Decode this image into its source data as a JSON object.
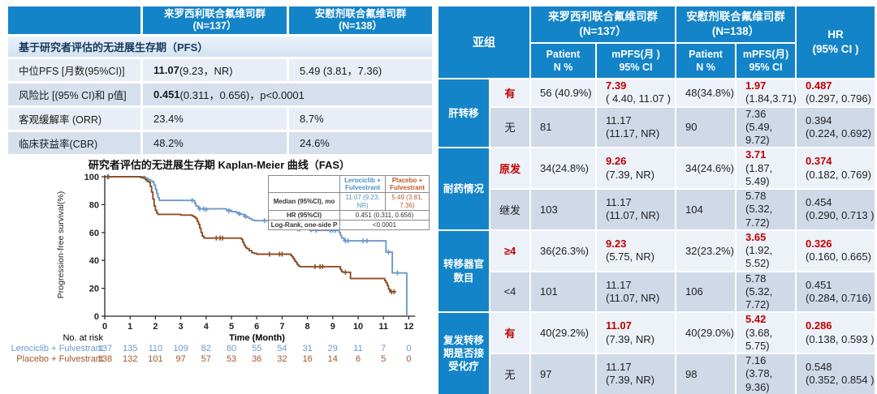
{
  "accent_color": "#1484c8",
  "highlight_color": "#c00000",
  "summary_table": {
    "arm1_header": "来罗西利联合氟维司群\n(N=137）",
    "arm2_header": "安慰剂联合氟维司群\n(N=138）",
    "section_header": "基于研究者评估的无进展生存期（PFS）",
    "median": {
      "label": "中位PFS [月数(95%CI)]",
      "v1_bold": "11.07",
      "v1_rest": " (9.23，NR)",
      "v2": "5.49 (3.81，7.36)"
    },
    "hr": {
      "label": "风险比 [(95% CI)和 p值]",
      "v_bold": "0.451",
      "v_rest": " (0.311，0.656)，p<0.0001"
    },
    "orr": {
      "label": "客观缓解率 (ORR)",
      "v1": "23.4%",
      "v2": "8.7%"
    },
    "cbr": {
      "label": "临床获益率(CBR)",
      "v1": "48.2%",
      "v2": "24.6%"
    }
  },
  "km": {
    "title": "研究者评估的无进展生存期 Kaplan-Meier 曲线（FAS）",
    "ylabel": "Progression-free survival(%)",
    "xlabel": "Time (Month)",
    "inset": {
      "arm1": "Lerociclib +\nFulvestrant",
      "arm2": "Placebo +\nFulvestrant",
      "median_label": "Median (95%CI), mo",
      "median_arm1": "11.07 (9.23, NR)",
      "median_arm2": "5.49 (3.81, 7.36)",
      "hr_label": "HR (95%CI)",
      "hr_value": "0.451  (0.311, 0.656)",
      "logrank_label": "Log-Rank, one-side P",
      "logrank_value": "<0.0001"
    }
  },
  "chart_data": {
    "type": "line",
    "title": "研究者评估的无进展生存期 Kaplan-Meier 曲线（FAS）",
    "xlabel": "Time (Month)",
    "ylabel": "Progression-free survival(%)",
    "xlim": [
      0,
      12
    ],
    "ylim": [
      0,
      100
    ],
    "xticks": [
      0,
      1,
      2,
      3,
      4,
      5,
      6,
      7,
      8,
      9,
      10,
      11,
      12
    ],
    "yticks": [
      0,
      20,
      40,
      60,
      80,
      100
    ],
    "grid": false,
    "legend_position": "inset-table-top-right",
    "series": [
      {
        "name": "Lerociclib + Fulvestrant",
        "color": "#6b9ac9",
        "steps": [
          [
            0,
            100
          ],
          [
            1.55,
            100
          ],
          [
            1.6,
            99
          ],
          [
            1.7,
            98
          ],
          [
            1.8,
            97
          ],
          [
            1.9,
            96
          ],
          [
            1.95,
            94
          ],
          [
            2.0,
            91
          ],
          [
            2.05,
            88
          ],
          [
            2.1,
            85
          ],
          [
            2.15,
            83
          ],
          [
            3.5,
            83
          ],
          [
            3.55,
            81
          ],
          [
            3.6,
            79
          ],
          [
            3.7,
            77
          ],
          [
            4.6,
            77
          ],
          [
            4.8,
            76
          ],
          [
            5.0,
            75
          ],
          [
            5.2,
            74
          ],
          [
            5.35,
            73
          ],
          [
            5.5,
            72
          ],
          [
            5.6,
            71
          ],
          [
            5.7,
            70
          ],
          [
            5.8,
            69
          ],
          [
            5.9,
            68.5
          ],
          [
            7.3,
            68.5
          ],
          [
            7.35,
            67
          ],
          [
            7.4,
            66
          ],
          [
            7.45,
            65
          ],
          [
            7.5,
            64
          ],
          [
            7.55,
            63
          ],
          [
            7.6,
            62.5
          ],
          [
            8.05,
            62.5
          ],
          [
            8.1,
            61.5
          ],
          [
            9.2,
            61.5
          ],
          [
            9.25,
            60
          ],
          [
            9.3,
            58
          ],
          [
            9.35,
            56
          ],
          [
            9.45,
            54
          ],
          [
            11.05,
            54
          ],
          [
            11.1,
            46
          ],
          [
            11.3,
            46
          ],
          [
            11.35,
            31
          ],
          [
            11.9,
            31
          ],
          [
            11.92,
            0
          ]
        ],
        "censors": [
          [
            0.15,
            100
          ],
          [
            3.45,
            83
          ],
          [
            3.75,
            77
          ],
          [
            3.9,
            77
          ],
          [
            4.0,
            76.5
          ],
          [
            4.9,
            75.5
          ],
          [
            5.3,
            73.5
          ],
          [
            5.55,
            71.5
          ],
          [
            6.3,
            68.5
          ],
          [
            6.5,
            68.5
          ],
          [
            6.9,
            68.5
          ],
          [
            7.5,
            63.5
          ],
          [
            7.62,
            62.5
          ],
          [
            7.7,
            62.5
          ],
          [
            8.15,
            62
          ],
          [
            8.35,
            61.5
          ],
          [
            8.9,
            61.5
          ],
          [
            9.0,
            61.5
          ],
          [
            9.1,
            61.5
          ],
          [
            9.5,
            54
          ],
          [
            9.6,
            54
          ],
          [
            10.2,
            54
          ],
          [
            10.35,
            54
          ],
          [
            11.2,
            46
          ],
          [
            11.55,
            31
          ]
        ]
      },
      {
        "name": "Placebo + Fulvestrant",
        "color": "#8e4e22",
        "steps": [
          [
            0,
            100
          ],
          [
            1.3,
            100
          ],
          [
            1.4,
            99.5
          ],
          [
            1.5,
            99
          ],
          [
            1.6,
            98
          ],
          [
            1.65,
            97
          ],
          [
            1.7,
            96.5
          ],
          [
            1.75,
            96
          ],
          [
            1.8,
            93
          ],
          [
            1.85,
            89
          ],
          [
            1.9,
            84
          ],
          [
            1.95,
            79
          ],
          [
            2.0,
            76
          ],
          [
            2.05,
            74
          ],
          [
            2.1,
            73
          ],
          [
            3.0,
            72.5
          ],
          [
            3.4,
            72.5
          ],
          [
            3.45,
            72
          ],
          [
            3.5,
            71.5
          ],
          [
            3.55,
            71
          ],
          [
            3.6,
            70
          ],
          [
            3.65,
            68
          ],
          [
            3.7,
            66
          ],
          [
            3.75,
            63
          ],
          [
            3.8,
            60
          ],
          [
            3.85,
            57.5
          ],
          [
            3.9,
            56.5
          ],
          [
            3.95,
            56
          ],
          [
            5.35,
            56
          ],
          [
            5.4,
            55
          ],
          [
            5.45,
            53
          ],
          [
            5.5,
            51
          ],
          [
            5.55,
            49.5
          ],
          [
            5.6,
            48.5
          ],
          [
            5.7,
            47
          ],
          [
            5.8,
            45.5
          ],
          [
            5.9,
            45
          ],
          [
            6.0,
            44.5
          ],
          [
            7.3,
            44.5
          ],
          [
            7.35,
            43.5
          ],
          [
            7.4,
            42.5
          ],
          [
            7.45,
            41
          ],
          [
            7.5,
            39.5
          ],
          [
            7.55,
            38.5
          ],
          [
            7.6,
            37
          ],
          [
            7.65,
            36
          ],
          [
            7.7,
            35.5
          ],
          [
            9.25,
            35.5
          ],
          [
            9.3,
            33.5
          ],
          [
            9.35,
            32
          ],
          [
            9.4,
            31.5
          ],
          [
            9.65,
            31.5
          ],
          [
            9.7,
            27
          ],
          [
            11.0,
            27
          ],
          [
            11.05,
            25.5
          ],
          [
            11.1,
            24
          ],
          [
            11.15,
            22
          ],
          [
            11.2,
            19.5
          ],
          [
            11.25,
            17.5
          ],
          [
            11.45,
            17.5
          ]
        ],
        "censors": [
          [
            0.12,
            100
          ],
          [
            4.4,
            56
          ],
          [
            4.55,
            56
          ],
          [
            4.65,
            56
          ],
          [
            6.5,
            44.5
          ],
          [
            6.9,
            44.5
          ],
          [
            7.0,
            44.5
          ],
          [
            8.3,
            35.5
          ],
          [
            8.5,
            35.5
          ],
          [
            8.6,
            35.5
          ],
          [
            9.5,
            31.5
          ],
          [
            11.32,
            17.5
          ],
          [
            11.42,
            17.5
          ]
        ]
      }
    ],
    "at_risk": {
      "title": "No. at risk",
      "rows": [
        {
          "name": "Lerociclib + Fulvestrant",
          "color": "#6b9ac9",
          "values": [
            137,
            135,
            110,
            109,
            82,
            80,
            55,
            54,
            31,
            29,
            11,
            7,
            0
          ]
        },
        {
          "name": "Placebo + Fulvestrant",
          "color": "#a4552a",
          "values": [
            138,
            132,
            101,
            97,
            57,
            53,
            36,
            32,
            16,
            14,
            6,
            5,
            0
          ]
        }
      ]
    }
  },
  "subgroup_table": {
    "header": {
      "col0": "亚组",
      "arm1": "来罗西利联合氟维司群\n(N=137）",
      "arm2": "安慰剂联合氟维司群\n(N=138）",
      "hr": "HR\n(95% CI )",
      "sub_patient1": "Patient\nN %",
      "sub_mpfs1": "mPFS(月 )\n95% CI",
      "sub_patient2": "Patient\nN %",
      "sub_mpfs2": "mPFS(月)\n95% CI"
    },
    "groups": [
      {
        "name": "肝转移",
        "rows": [
          {
            "label": "有",
            "highlight": true,
            "p1": "56 (40.9%)",
            "m1": "7.39",
            "m1ci": "( 4.40, 11.07 )",
            "p2": "48(34.8%)",
            "m2": "1.97",
            "m2ci": "(1.84,3.71)",
            "hr": "0.487",
            "hrci": "(0.297, 0.796)"
          },
          {
            "label": "无",
            "highlight": false,
            "p1": "81",
            "m1": "11.17",
            "m1ci": "(11.17, NR)",
            "p2": "90",
            "m2": "7.36",
            "m2ci": "(5.49, 9.72)",
            "hr": "0.394",
            "hrci": "(0.224, 0.692)"
          }
        ]
      },
      {
        "name": "耐药情况",
        "rows": [
          {
            "label": "原发",
            "highlight": true,
            "p1": "34(24.8%)",
            "m1": "9.26",
            "m1ci": "(7.39, NR)",
            "p2": "34(24.6%)",
            "m2": "3.71",
            "m2ci": "(1.87, 5.49)",
            "hr": "0.374",
            "hrci": "(0.182, 0.769)"
          },
          {
            "label": "继发",
            "highlight": false,
            "p1": "103",
            "m1": "11.17",
            "m1ci": "(11.07, NR)",
            "p2": "104",
            "m2": "5.78",
            "m2ci": "(5.32, 7.72)",
            "hr": "0.454",
            "hrci": "(0.290, 0.713 )"
          }
        ]
      },
      {
        "name": "转移器官\n数目",
        "rows": [
          {
            "label": "≥4",
            "highlight": true,
            "p1": "36(26.3%)",
            "m1": "9.23",
            "m1ci": "(5.75, NR)",
            "p2": "32(23.2%)",
            "m2": "3.65",
            "m2ci": "(1.92, 5.52)",
            "hr": "0.326",
            "hrci": "(0.160, 0.665)"
          },
          {
            "label": "<4",
            "highlight": false,
            "p1": "101",
            "m1": "11.17",
            "m1ci": "(11.07, NR)",
            "p2": "106",
            "m2": "5.78",
            "m2ci": "(5.32, 7.72)",
            "hr": "0.451",
            "hrci": "(0.284, 0.716)"
          }
        ]
      },
      {
        "name": "复发转移\n期是否接\n受化疗",
        "rows": [
          {
            "label": "有",
            "highlight": true,
            "p1": "40(29.2%)",
            "m1": "11.07",
            "m1ci": "(7.39, NR)",
            "p2": "40(29.0%)",
            "m2": "5.42",
            "m2ci": "(3.68, 5.75)",
            "hr": "0.286",
            "hrci": "(0.138, 0.593 )"
          },
          {
            "label": "无",
            "highlight": false,
            "p1": "97",
            "m1": "11.17",
            "m1ci": "(7.39, NR)",
            "p2": "98",
            "m2": "7.16",
            "m2ci": "(3.78, 9.36)",
            "hr": "0.548",
            "hrci": "(0.352, 0.854 )"
          }
        ]
      }
    ]
  }
}
